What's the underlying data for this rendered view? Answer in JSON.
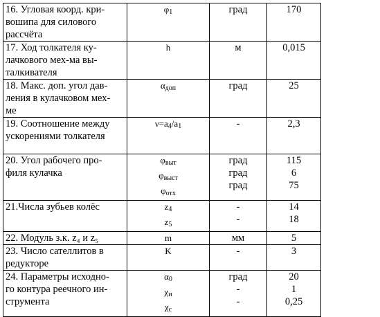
{
  "table": {
    "rows": [
      {
        "name": "16. Угловая коорд. кри-\nвошипа для силового\nрасcчёта",
        "symbol": [
          {
            "base": "φ",
            "sub": "1"
          }
        ],
        "unit": [
          "град"
        ],
        "value": [
          "170"
        ]
      },
      {
        "name": "17. Ход толкателя ку-\nлачкового мех-ма вы-\nталкивателя",
        "symbol": [
          {
            "base": "h",
            "sub": ""
          }
        ],
        "unit": [
          "м"
        ],
        "value": [
          "0,015"
        ]
      },
      {
        "name": "18. Макс. доп. угол дав-\nления в кулачковом мех-\nме",
        "symbol": [
          {
            "base": "α",
            "sub": "доп"
          }
        ],
        "unit": [
          "град"
        ],
        "value": [
          "25"
        ]
      },
      {
        "name": "19. Соотношение между\nускорениями толкателя",
        "symbol": [
          {
            "base": "ν=a",
            "sub": "4",
            "tail": "/a",
            "sub2": "1"
          }
        ],
        "unit": [
          "-"
        ],
        "value": [
          "2,3"
        ]
      },
      {
        "name": "20. Угол рабочего про-\nфиля кулачка",
        "symbol": [
          {
            "base": "φ",
            "sub": "выт"
          },
          {
            "base": "φ",
            "sub": "выст"
          },
          {
            "base": "φ",
            "sub": "отх"
          }
        ],
        "unit": [
          "град",
          "град",
          "град"
        ],
        "value": [
          "115",
          "6",
          "75"
        ]
      },
      {
        "name": "21.Числа зубьев колёс",
        "symbol": [
          {
            "base": "z",
            "sub": "4"
          },
          {
            "base": "z",
            "sub": "5"
          }
        ],
        "unit": [
          "-",
          "-"
        ],
        "value": [
          "14",
          "18"
        ]
      },
      {
        "name": "22. Модуль з.к. z₄ и z₅",
        "symbol": [
          {
            "base": "m",
            "sub": ""
          }
        ],
        "unit": [
          "мм"
        ],
        "value": [
          "5"
        ]
      },
      {
        "name": "23. Число сателлитов в\nредукторе",
        "symbol": [
          {
            "base": "K",
            "sub": ""
          }
        ],
        "unit": [
          "-"
        ],
        "value": [
          "3"
        ]
      },
      {
        "name": "24. Параметры исходно-\nго контура реечного ин-\nструмента",
        "symbol": [
          {
            "base": "α",
            "sub": "0"
          },
          {
            "base": "χ",
            "sub": "и"
          },
          {
            "base": "χ",
            "sub": "с"
          }
        ],
        "unit": [
          "град",
          "-",
          "-"
        ],
        "value": [
          "20",
          "1",
          "0,25"
        ]
      }
    ]
  }
}
